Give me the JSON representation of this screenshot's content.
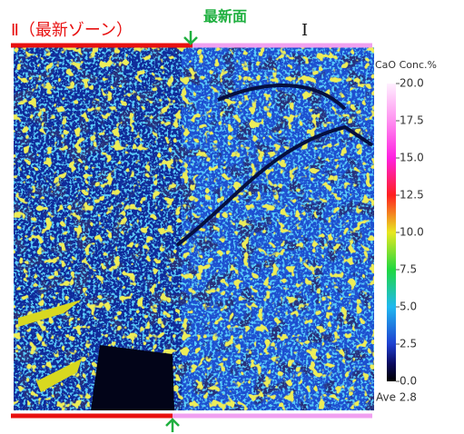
{
  "labels": {
    "zone_2": "Ⅱ（最新ゾーン）",
    "newest_surface": "最新面",
    "zone_1": "Ⅰ"
  },
  "colorbar": {
    "title": "CaO Conc.%",
    "lim": [
      0,
      20
    ],
    "ticks": [
      {
        "value": 20,
        "label": "20.0"
      },
      {
        "value": 17.5,
        "label": "17.5"
      },
      {
        "value": 15,
        "label": "15.0"
      },
      {
        "value": 12.5,
        "label": "12.5"
      },
      {
        "value": 10,
        "label": "10.0"
      },
      {
        "value": 7.5,
        "label": "7.5"
      },
      {
        "value": 5,
        "label": "5.0"
      },
      {
        "value": 2.5,
        "label": "2.5"
      },
      {
        "value": 0,
        "label": "0.0"
      }
    ],
    "average": "Ave 2.8"
  }
}
